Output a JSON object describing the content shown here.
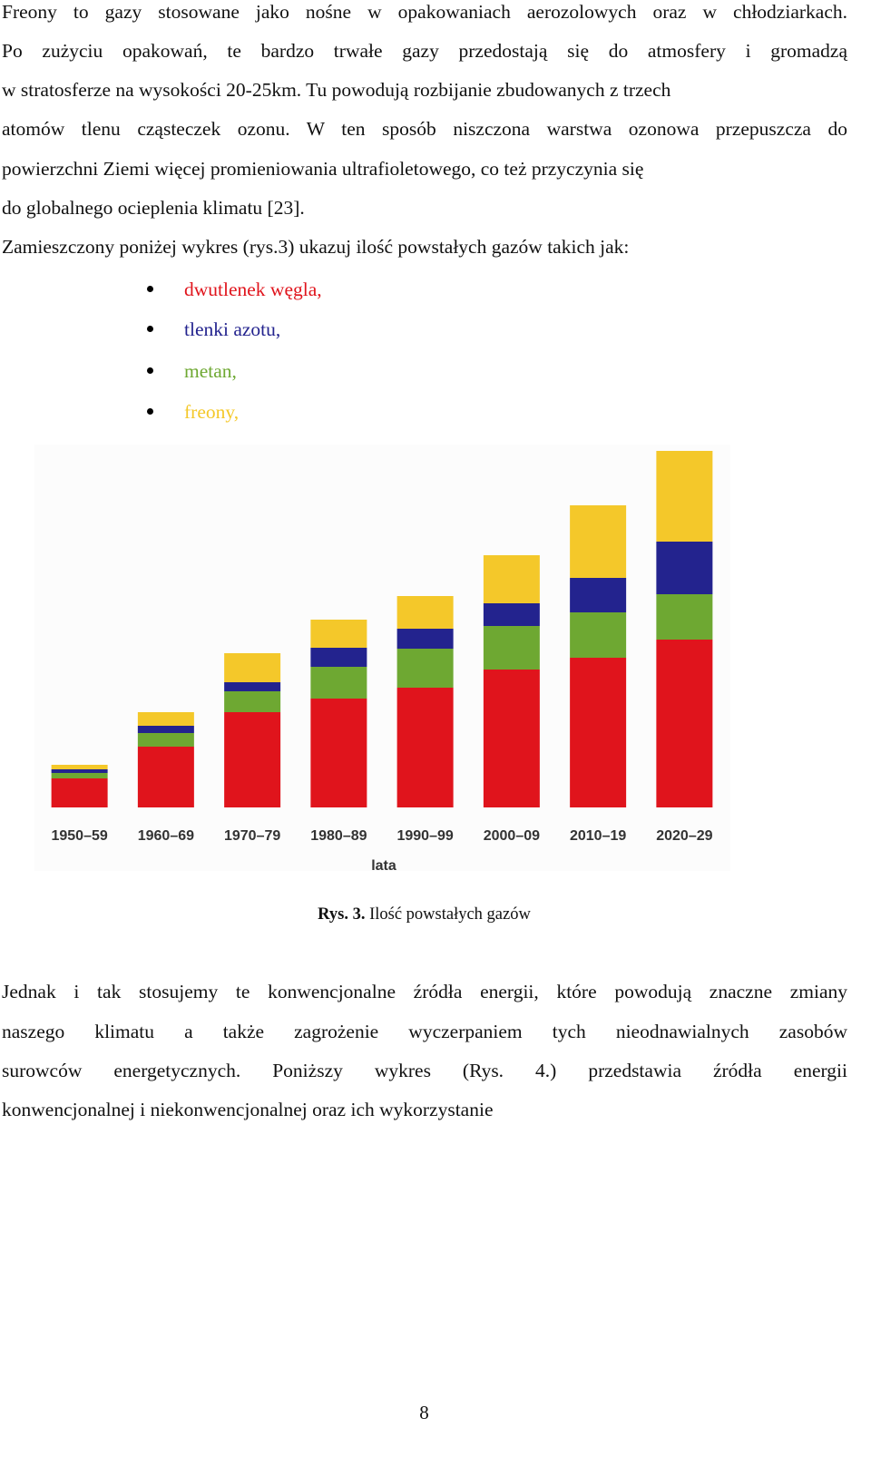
{
  "intro_lines": [
    "Freony to gazy stosowane jako nośne w opakowaniach aerozolowych oraz w chłodziarkach.",
    "Po zużyciu opakowań, te bardzo trwałe gazy przedostają się do atmosfery i gromadzą",
    "w stratosferze na wysokości 20-25km. Tu powodują rozbijanie zbudowanych z trzech",
    "atomów tlenu cząsteczek ozonu. W ten sposób niszczona warstwa ozonowa przepuszcza do",
    "powierzchni Ziemi więcej promieniowania ultrafioletowego, co też przyczynia się",
    "do globalnego ocieplenia klimatu [23].",
    "Zamieszczony poniżej wykres (rys.3) ukazuj ilość powstałych gazów takich jak:"
  ],
  "chart_data": {
    "type": "stacked_bar",
    "x_label": "lata",
    "categories": [
      "1950–59",
      "1960–69",
      "1970–79",
      "1980–89",
      "1990–99",
      "2000–09",
      "2010–19",
      "2020–29"
    ],
    "series": [
      {
        "name": "dwutlenek węgla,",
        "color": "#e0141c",
        "values": [
          32,
          67,
          105,
          120,
          132,
          152,
          165,
          185
        ]
      },
      {
        "name": "metan,",
        "color": "#6ea832",
        "values": [
          6,
          15,
          23,
          35,
          43,
          48,
          50,
          50
        ]
      },
      {
        "name": "tlenki azotu,",
        "color": "#23238e",
        "values": [
          4,
          8,
          10,
          21,
          22,
          25,
          38,
          58
        ]
      },
      {
        "name": "freony,",
        "color": "#f4c82a",
        "values": [
          5,
          15,
          32,
          31,
          36,
          53,
          80,
          100
        ]
      }
    ]
  },
  "caption": {
    "label": "Rys. 3.",
    "text": "Ilość powstałych gazów"
  },
  "outro_lines": [
    "Jednak i tak stosujemy te konwencjonalne źródła energii, które powodują znaczne zmiany",
    "naszego klimatu a także zagrożenie wyczerpaniem tych nieodnawialnych zasobów",
    "surowców energetycznych. Poniższy wykres (Rys. 4.) przedstawia źródła energii",
    "konwencjonalnej i niekonwencjonalnej oraz ich wykorzystanie"
  ],
  "page_number": "8"
}
